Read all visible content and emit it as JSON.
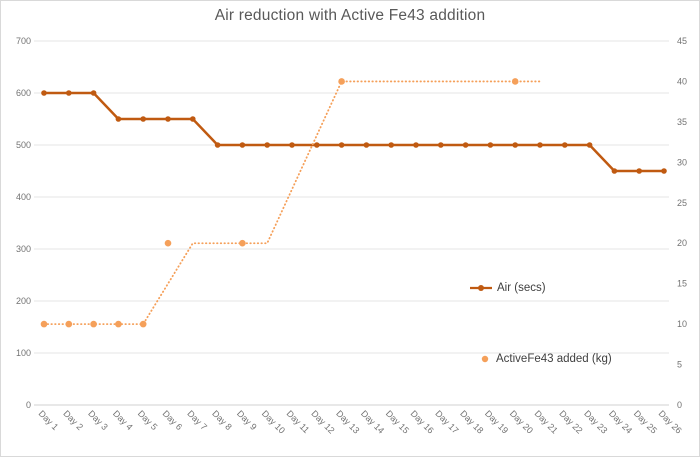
{
  "chart_data": {
    "type": "line",
    "title": "Air reduction with Active Fe43 addition",
    "categories": [
      "Day 1",
      "Day 2",
      "Day 3",
      "Day 4",
      "Day 5",
      "Day 6",
      "Day 7",
      "Day 8",
      "Day 9",
      "Day 10",
      "Day 11",
      "Day 12",
      "Day 13",
      "Day 14",
      "Day 15",
      "Day 16",
      "Day 17",
      "Day 18",
      "Day 19",
      "Day 20",
      "Day 21",
      "Day 22",
      "Day 23",
      "Day 24",
      "Day 25",
      "Day 26"
    ],
    "left_axis": {
      "min": 0,
      "max": 700,
      "step": 100,
      "ticks": [
        0,
        100,
        200,
        300,
        400,
        500,
        600,
        700
      ]
    },
    "right_axis": {
      "min": 0,
      "max": 45,
      "step": 5,
      "ticks": [
        0,
        5,
        10,
        15,
        20,
        25,
        30,
        35,
        40,
        45
      ]
    },
    "grid": "horizontal",
    "series": [
      {
        "name": "Air (secs)",
        "axis": "left",
        "color": "#c05a11",
        "style": "solid",
        "markers": "every-point",
        "values": [
          600,
          600,
          600,
          550,
          550,
          550,
          550,
          500,
          500,
          500,
          500,
          500,
          500,
          500,
          500,
          500,
          500,
          500,
          500,
          500,
          500,
          500,
          500,
          450,
          450,
          450
        ]
      },
      {
        "name": "ActiveFe43 added (kg)",
        "axis": "right",
        "color": "#f5a05a",
        "style": "dotted",
        "line_vertices": [
          {
            "day": 1,
            "value": 10
          },
          {
            "day": 5,
            "value": 10
          },
          {
            "day": 7,
            "value": 20
          },
          {
            "day": 10,
            "value": 20
          },
          {
            "day": 13,
            "value": 40
          },
          {
            "day": 21,
            "value": 40
          }
        ],
        "marker_points": [
          {
            "day": 1,
            "value": 10
          },
          {
            "day": 2,
            "value": 10
          },
          {
            "day": 3,
            "value": 10
          },
          {
            "day": 4,
            "value": 10
          },
          {
            "day": 5,
            "value": 10
          },
          {
            "day": 6,
            "value": 20
          },
          {
            "day": 9,
            "value": 20
          },
          {
            "day": 13,
            "value": 40
          },
          {
            "day": 20,
            "value": 40
          }
        ]
      }
    ],
    "legend": [
      {
        "label": "Air (secs)"
      },
      {
        "label": "ActiveFe43 added (kg)"
      }
    ],
    "colors": {
      "air_line": "#c05a11",
      "fe_line": "#f5a05a",
      "gridline": "#e4e4e4",
      "axis_line": "#d2d2d2",
      "tick_text": "#737373",
      "title_text": "#595959"
    }
  }
}
